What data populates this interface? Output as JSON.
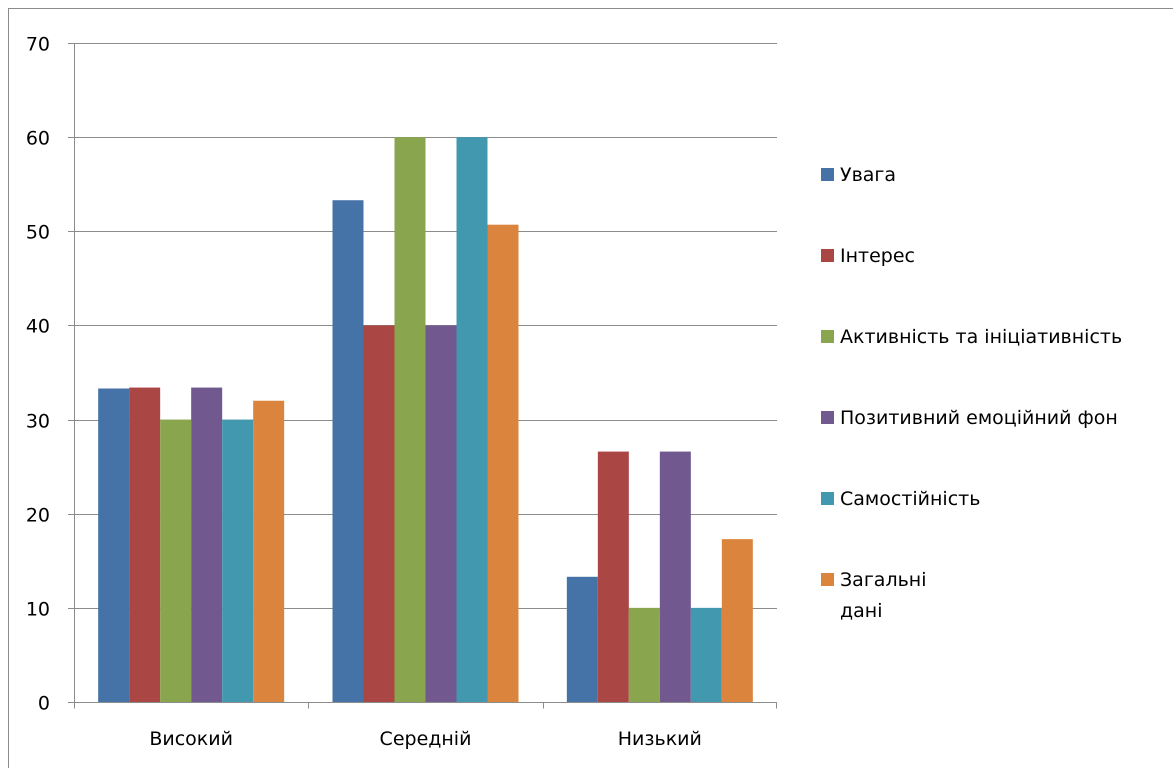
{
  "chart_data": {
    "type": "bar",
    "categories": [
      "Високий",
      "Середній",
      "Низький"
    ],
    "series": [
      {
        "name": "Увага",
        "color": "#4572A7",
        "values": [
          33.3,
          53.3,
          13.3
        ]
      },
      {
        "name": "Інтерес",
        "color": "#AA4643",
        "values": [
          33.4,
          40,
          26.6
        ]
      },
      {
        "name": "Активність та ініціативність",
        "color": "#89A54E",
        "values": [
          30,
          60,
          10
        ]
      },
      {
        "name": "Позитивний емоційний фон",
        "color": "#71588F",
        "values": [
          33.4,
          40,
          26.6
        ]
      },
      {
        "name": "Самостійність",
        "color": "#4198AF",
        "values": [
          30,
          60,
          10
        ]
      },
      {
        "name": "Загальні\nдані",
        "color": "#DB843D",
        "values": [
          32,
          50.7,
          17.3
        ]
      }
    ],
    "yticks": [
      0,
      10,
      20,
      30,
      40,
      50,
      60,
      70
    ],
    "ylim": [
      0,
      70
    ],
    "grid": true,
    "legend": "right",
    "title": "",
    "xlabel": "",
    "ylabel": ""
  }
}
